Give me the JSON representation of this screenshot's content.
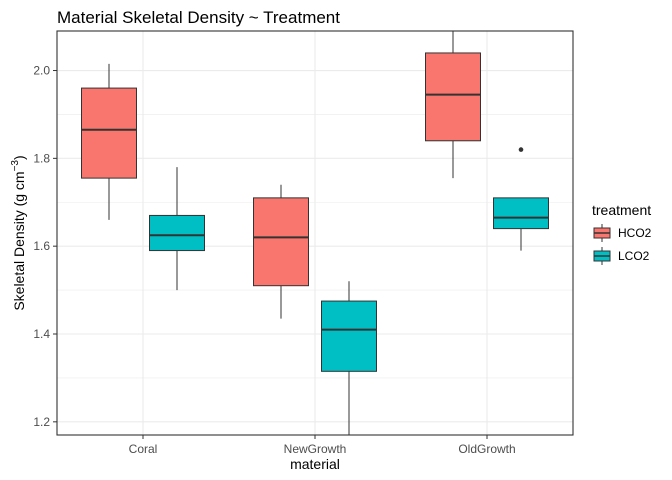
{
  "chart_data": {
    "type": "boxplot",
    "title": "Material Skeletal Density ~ Treatment",
    "xlabel": "material",
    "ylabel": "Skeletal Density (g cm",
    "ylabel_superscript": "−3",
    "ylabel_close": ")",
    "categories": [
      "Coral",
      "NewGrowth",
      "OldGrowth"
    ],
    "ylim": [
      1.17,
      2.09
    ],
    "yticks": [
      1.2,
      1.4,
      1.6,
      1.8,
      2.0
    ],
    "ytick_labels": [
      "1.2",
      "1.4",
      "1.6",
      "1.8",
      "2.0"
    ],
    "grid": true,
    "legend": {
      "title": "treatment",
      "position": "right"
    },
    "series": [
      {
        "name": "HCO2",
        "color": "#F8766D",
        "boxes": [
          {
            "category": "Coral",
            "min": 1.66,
            "q1": 1.755,
            "median": 1.865,
            "q3": 1.96,
            "max": 2.015,
            "outliers": []
          },
          {
            "category": "NewGrowth",
            "min": 1.435,
            "q1": 1.51,
            "median": 1.62,
            "q3": 1.71,
            "max": 1.74,
            "outliers": []
          },
          {
            "category": "OldGrowth",
            "min": 1.755,
            "q1": 1.84,
            "median": 1.945,
            "q3": 2.04,
            "max": 2.09,
            "outliers": []
          }
        ]
      },
      {
        "name": "LCO2",
        "color": "#00BFC4",
        "boxes": [
          {
            "category": "Coral",
            "min": 1.5,
            "q1": 1.59,
            "median": 1.625,
            "q3": 1.67,
            "max": 1.78,
            "outliers": []
          },
          {
            "category": "NewGrowth",
            "min": 1.17,
            "q1": 1.315,
            "median": 1.41,
            "q3": 1.475,
            "max": 1.52,
            "outliers": []
          },
          {
            "category": "OldGrowth",
            "min": 1.59,
            "q1": 1.64,
            "median": 1.665,
            "q3": 1.71,
            "max": 1.71,
            "outliers": [
              1.82
            ]
          }
        ]
      }
    ]
  }
}
